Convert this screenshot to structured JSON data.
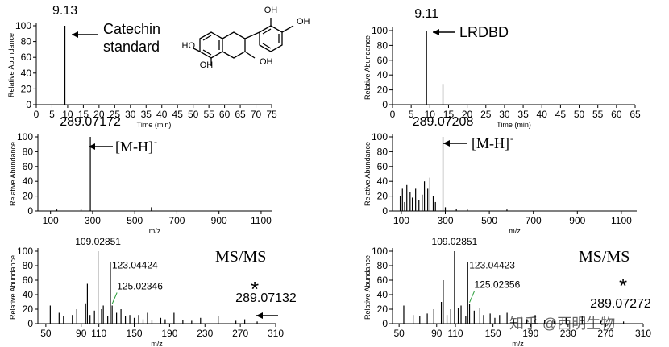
{
  "chart_data": [
    {
      "type": "stick",
      "xlabel": "Time (min)",
      "ylabel": "Relative Abundance",
      "xlim": [
        0,
        75
      ],
      "xticks": [
        0,
        5,
        10,
        15,
        20,
        25,
        30,
        35,
        40,
        45,
        50,
        55,
        60,
        65,
        70,
        75
      ],
      "ylim": [
        0,
        100
      ],
      "yticks": [
        0,
        20,
        40,
        60,
        80,
        100
      ],
      "color": "#000000",
      "peaks": {
        "x": [],
        "values": []
      },
      "labeled_peaks": {
        "x": [
          9.13
        ],
        "values": [
          100
        ]
      },
      "annotations": [
        {
          "text": "Catechin"
        },
        {
          "text": "standard"
        }
      ],
      "structure_labels": [
        "HO",
        "OH",
        "OH",
        "OH",
        "OH"
      ]
    },
    {
      "type": "stick",
      "xlabel": "Time (min)",
      "ylabel": "Relative Abundance",
      "xlim": [
        0,
        65
      ],
      "xticks": [
        0,
        5,
        10,
        15,
        20,
        25,
        30,
        35,
        40,
        45,
        50,
        55,
        60,
        65
      ],
      "ylim": [
        0,
        100
      ],
      "yticks": [
        0,
        20,
        40,
        60,
        80,
        100
      ],
      "color": "#000000",
      "peaks": {
        "x": [
          13.5
        ],
        "values": [
          28
        ]
      },
      "labeled_peaks": {
        "x": [
          9.11
        ],
        "values": [
          100
        ]
      },
      "annotations": [
        {
          "text": "LRDBD"
        }
      ]
    },
    {
      "type": "stick",
      "xlabel": "m/z",
      "ylabel": "Relative Abundance",
      "xlim": [
        40,
        1150
      ],
      "xticks": [
        100,
        300,
        500,
        700,
        900,
        1100
      ],
      "ylim": [
        0,
        100
      ],
      "yticks": [
        0,
        20,
        40,
        60,
        80,
        100
      ],
      "color": "#000000",
      "peaks": {
        "x": [
          130,
          245,
          579
        ],
        "values": [
          2,
          3,
          5
        ]
      },
      "labeled_peaks": {
        "x": [
          289.07172
        ],
        "values": [
          100
        ]
      },
      "annotations": [
        {
          "text": "[M-H]",
          "sup": "-"
        }
      ]
    },
    {
      "type": "stick",
      "xlabel": "m/z",
      "ylabel": "Relative Abundance",
      "xlim": [
        60,
        1170
      ],
      "xticks": [
        100,
        300,
        500,
        700,
        900,
        1100
      ],
      "ylim": [
        0,
        100
      ],
      "yticks": [
        0,
        20,
        40,
        60,
        80,
        100
      ],
      "color": "#000000",
      "peaks": {
        "x": [
          95,
          105,
          115,
          125,
          140,
          150,
          165,
          180,
          195,
          205,
          220,
          230,
          245,
          255,
          300,
          350,
          400,
          580
        ],
        "values": [
          20,
          30,
          12,
          35,
          25,
          18,
          30,
          15,
          22,
          40,
          30,
          45,
          20,
          12,
          5,
          3,
          2,
          2
        ]
      },
      "labeled_peaks": {
        "x": [
          289.07208
        ],
        "values": [
          100
        ]
      },
      "annotations": [
        {
          "text": "[M-H]",
          "sup": "-"
        }
      ]
    },
    {
      "type": "stick",
      "xlabel": "m/z",
      "ylabel": "Relative Abundance",
      "xlim": [
        41,
        310
      ],
      "xticks": [
        50,
        90,
        110,
        150,
        190,
        230,
        270,
        310
      ],
      "ylim": [
        0,
        100
      ],
      "yticks": [
        0,
        20,
        40,
        60,
        80,
        100
      ],
      "color": "#000000",
      "peaks": {
        "x": [
          55,
          65,
          70,
          80,
          85,
          95,
          97,
          100,
          105,
          113,
          115,
          120,
          130,
          135,
          140,
          145,
          150,
          155,
          160,
          165,
          170,
          180,
          185,
          195,
          205,
          215,
          225,
          245,
          265,
          275
        ],
        "values": [
          25,
          15,
          10,
          12,
          20,
          28,
          55,
          12,
          18,
          20,
          25,
          10,
          15,
          20,
          10,
          12,
          8,
          12,
          6,
          15,
          5,
          8,
          6,
          15,
          5,
          4,
          8,
          10,
          4,
          6
        ]
      },
      "labeled_peaks": {
        "x": [
          109.02851,
          123.04424,
          125.02346,
          289.07132
        ],
        "values": [
          100,
          85,
          25,
          3
        ]
      },
      "annotations": [
        {
          "text": "MS/MS"
        },
        {
          "text": "*"
        }
      ]
    },
    {
      "type": "stick",
      "xlabel": "m/z",
      "ylabel": "Relative Abundance",
      "xlim": [
        43,
        310
      ],
      "xticks": [
        50,
        90,
        110,
        150,
        190,
        230,
        270,
        310
      ],
      "ylim": [
        0,
        100
      ],
      "yticks": [
        0,
        20,
        40,
        60,
        80,
        100
      ],
      "color": "#000000",
      "peaks": {
        "x": [
          55,
          65,
          72,
          80,
          87,
          95,
          97,
          101,
          105,
          113,
          116,
          121,
          130,
          136,
          140,
          147,
          152,
          157,
          165,
          172,
          180,
          186,
          195,
          205,
          215,
          228,
          245,
          265
        ],
        "values": [
          25,
          12,
          10,
          14,
          20,
          30,
          60,
          12,
          20,
          22,
          25,
          10,
          18,
          22,
          12,
          14,
          8,
          12,
          15,
          6,
          10,
          6,
          12,
          5,
          4,
          8,
          10,
          4
        ]
      },
      "labeled_peaks": {
        "x": [
          109.02851,
          123.04423,
          125.02356,
          289.07272
        ],
        "values": [
          100,
          85,
          27,
          3
        ]
      },
      "annotations": [
        {
          "text": "MS/MS"
        },
        {
          "text": "*"
        }
      ]
    }
  ],
  "watermark": "知乎 @西明生物"
}
